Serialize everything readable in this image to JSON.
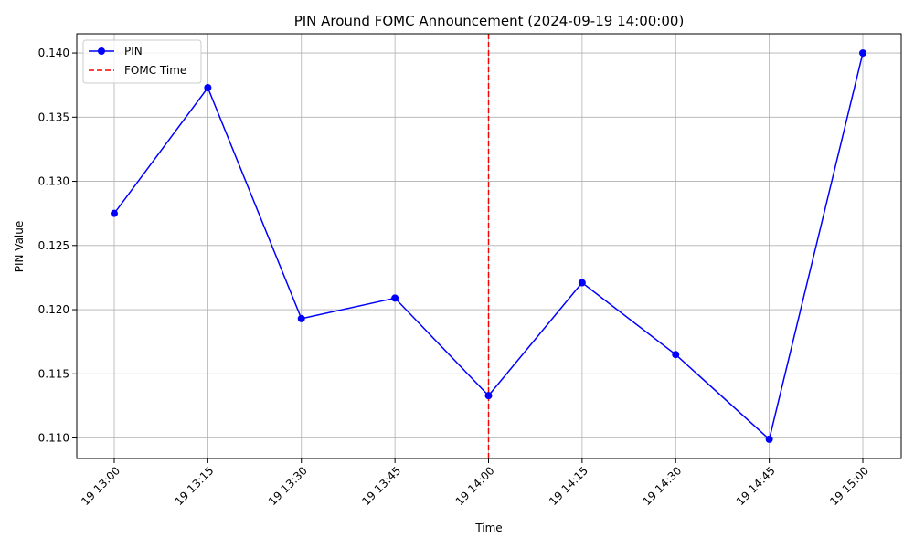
{
  "chart_data": {
    "type": "line",
    "title": "PIN Around FOMC Announcement (2024-09-19 14:00:00)",
    "xlabel": "Time",
    "ylabel": "PIN Value",
    "x": [
      "19 13:00",
      "19 13:15",
      "19 13:30",
      "19 13:45",
      "19 14:00",
      "19 14:15",
      "19 14:30",
      "19 14:45",
      "19 15:00"
    ],
    "series": [
      {
        "name": "PIN",
        "color": "#0000ff",
        "marker": "circle",
        "values": [
          0.1275,
          0.1373,
          0.1193,
          0.1209,
          0.1133,
          0.1221,
          0.1165,
          0.1099,
          0.14
        ]
      }
    ],
    "vline": {
      "name": "FOMC Time",
      "x": "19 14:00",
      "color": "#ff0000",
      "style": "dashed"
    },
    "yticks": [
      "0.110",
      "0.115",
      "0.120",
      "0.125",
      "0.130",
      "0.135",
      "0.140"
    ],
    "ylim": [
      0.1084,
      0.1415
    ],
    "grid": true,
    "legend": "top-left"
  }
}
